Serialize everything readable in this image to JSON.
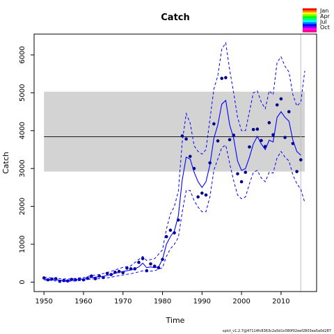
{
  "chart_data": {
    "type": "line",
    "title": "Catch",
    "xlabel": "Time",
    "ylabel": "Catch",
    "xlim": [
      1947.5,
      2019.0
    ],
    "ylim": [
      -250,
      6550
    ],
    "x_ticks": [
      1950,
      1960,
      1970,
      1980,
      1990,
      2000,
      2010
    ],
    "y_ticks": [
      0,
      1000,
      2000,
      3000,
      4000,
      5000,
      6000
    ],
    "grid": false,
    "band": {
      "x": [
        1950,
        2016
      ],
      "y": [
        2920,
        5030
      ],
      "color": "#d3d3d3"
    },
    "reference_line": {
      "y": 3840,
      "color": "#000000"
    },
    "vertical_line": {
      "x": 2015,
      "color": "#bebebe"
    },
    "colors": {
      "points": "#00008b",
      "fit": "#0000ff",
      "band": "#d3d3d3"
    },
    "series": [
      {
        "kind": "points",
        "x": [
          1950,
          1951,
          1952,
          1953,
          1954,
          1955,
          1956,
          1957,
          1958,
          1959,
          1960,
          1961,
          1962,
          1963,
          1964,
          1965,
          1966,
          1967,
          1968,
          1969,
          1970,
          1971,
          1972,
          1973,
          1974,
          1975,
          1976,
          1977,
          1978,
          1979,
          1980,
          1981,
          1982,
          1983,
          1984,
          1985,
          1986,
          1987,
          1988,
          1989,
          1990,
          1991,
          1992,
          1993,
          1994,
          1995,
          1996,
          1997,
          1998,
          1999,
          2000,
          2001,
          2002,
          2003,
          2004,
          2005,
          2006,
          2007,
          2008,
          2009,
          2010,
          2011,
          2012,
          2013,
          2014,
          2015
        ],
        "values": [
          110,
          60,
          80,
          90,
          20,
          40,
          30,
          70,
          60,
          80,
          60,
          100,
          160,
          90,
          160,
          120,
          230,
          200,
          260,
          280,
          250,
          370,
          350,
          350,
          520,
          620,
          300,
          480,
          420,
          380,
          600,
          1200,
          1370,
          1300,
          1640,
          3860,
          3780,
          3320,
          3000,
          2250,
          2350,
          2300,
          3150,
          4180,
          3730,
          5380,
          5400,
          3760,
          3880,
          2860,
          2650,
          2900,
          3570,
          4030,
          4040,
          3740,
          3580,
          4210,
          3890,
          4680,
          4840,
          3820,
          4500,
          3660,
          2920,
          3230
        ]
      },
      {
        "kind": "line",
        "x": [
          1950,
          1951,
          1952,
          1953,
          1954,
          1955,
          1956,
          1957,
          1958,
          1959,
          1960,
          1961,
          1962,
          1963,
          1964,
          1965,
          1966,
          1967,
          1968,
          1969,
          1970,
          1971,
          1972,
          1973,
          1974,
          1975,
          1976,
          1977,
          1978,
          1979,
          1980,
          1981,
          1982,
          1983,
          1984,
          1985,
          1986,
          1987,
          1988,
          1989,
          1990,
          1991,
          1992,
          1993,
          1994,
          1995,
          1996,
          1997,
          1998,
          1999,
          2000,
          2001,
          2002,
          2003,
          2004,
          2005,
          2006,
          2007,
          2008,
          2009,
          2010,
          2011,
          2012,
          2013,
          2014,
          2015
        ],
        "values": [
          90,
          70,
          70,
          60,
          50,
          40,
          45,
          55,
          60,
          70,
          80,
          100,
          120,
          130,
          140,
          150,
          175,
          200,
          230,
          260,
          280,
          300,
          320,
          350,
          400,
          500,
          380,
          400,
          380,
          400,
          600,
          1000,
          1200,
          1350,
          1750,
          2700,
          3300,
          3250,
          2900,
          2650,
          2500,
          2650,
          3100,
          3800,
          4150,
          4700,
          4800,
          4150,
          3800,
          3200,
          2950,
          3000,
          3300,
          3650,
          3850,
          3650,
          3500,
          3750,
          3700,
          4350,
          4500,
          4350,
          4250,
          3750,
          3450,
          3350
        ]
      },
      {
        "kind": "upper",
        "x": [
          1950,
          1952,
          1954,
          1956,
          1958,
          1960,
          1962,
          1964,
          1966,
          1968,
          1970,
          1972,
          1974,
          1975,
          1976,
          1978,
          1980,
          1981,
          1982,
          1983,
          1984,
          1985,
          1986,
          1987,
          1988,
          1989,
          1990,
          1991,
          1992,
          1993,
          1994,
          1995,
          1996,
          1997,
          1998,
          1999,
          2000,
          2001,
          2002,
          2003,
          2004,
          2005,
          2006,
          2007,
          2008,
          2009,
          2010,
          2011,
          2012,
          2013,
          2014,
          2015,
          2016
        ],
        "values": [
          130,
          110,
          90,
          80,
          100,
          120,
          170,
          200,
          250,
          320,
          390,
          430,
          600,
          680,
          570,
          620,
          850,
          1400,
          1800,
          2000,
          2400,
          3700,
          4450,
          4200,
          3600,
          3450,
          3380,
          3500,
          4300,
          5100,
          5450,
          6150,
          6320,
          5600,
          5000,
          4350,
          4000,
          4000,
          4500,
          5000,
          5050,
          4750,
          4580,
          5050,
          4950,
          5800,
          5950,
          5700,
          5550,
          4950,
          4650,
          4750,
          5580
        ]
      },
      {
        "kind": "lower",
        "x": [
          1950,
          1952,
          1954,
          1956,
          1958,
          1960,
          1962,
          1964,
          1966,
          1968,
          1970,
          1972,
          1974,
          1975,
          1976,
          1978,
          1980,
          1981,
          1982,
          1983,
          1984,
          1985,
          1986,
          1987,
          1988,
          1989,
          1990,
          1991,
          1992,
          1993,
          1994,
          1995,
          1996,
          1997,
          1998,
          1999,
          2000,
          2001,
          2002,
          2003,
          2004,
          2005,
          2006,
          2007,
          2008,
          2009,
          2010,
          2011,
          2012,
          2013,
          2014,
          2015,
          2016
        ],
        "values": [
          60,
          40,
          20,
          20,
          30,
          50,
          80,
          90,
          110,
          150,
          190,
          220,
          270,
          300,
          280,
          300,
          380,
          680,
          880,
          1000,
          1180,
          1850,
          2420,
          2420,
          2150,
          1980,
          1860,
          1860,
          2250,
          2960,
          3250,
          3550,
          3620,
          3130,
          2680,
          2300,
          2200,
          2250,
          2600,
          2900,
          2950,
          2750,
          2650,
          2900,
          2880,
          3280,
          3450,
          3300,
          3200,
          2830,
          2600,
          2450,
          2100
        ]
      }
    ],
    "legend": {
      "placement": "top-right",
      "entries": [
        "Jan",
        "Apr",
        "Jul",
        "Oct"
      ],
      "gradient": [
        "#ff0000",
        "#ff8000",
        "#ffff00",
        "#80ff00",
        "#00ff00",
        "#00ff80",
        "#00ffff",
        "#0080ff",
        "#0000ff",
        "#8000ff",
        "#ff00ff",
        "#ff0080"
      ]
    },
    "footnote": "spict_v1.2.7@47114fc8363c2a5d1c080f02eef2803ea5a0d287"
  }
}
